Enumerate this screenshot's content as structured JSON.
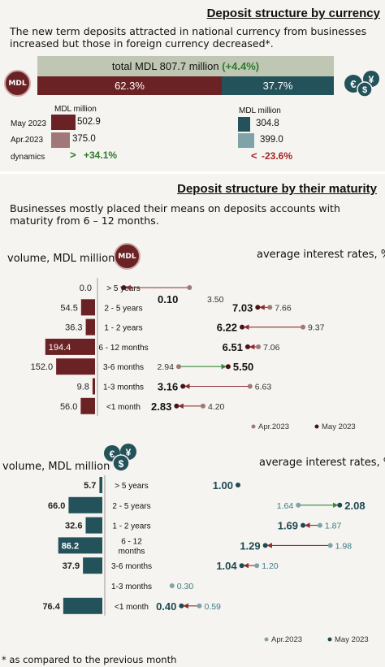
{
  "section1": {
    "title": "Deposit structure  by currency",
    "description": "The new term deposits attracted in national currency from businesses increased but those in foreign currency decreased*.",
    "total_label": "total MDL  807.7 million",
    "total_change": "(+4.4%)",
    "mdl_share": "62.3%",
    "fx_share": "37.7%",
    "mdl_badge": "MDL",
    "mdl_unit": "MDL million",
    "fx_unit": "MDL million",
    "row_labels": [
      "May 2023",
      "Apr.2023",
      "dynamics"
    ],
    "mdl_values": [
      "502.9",
      "375.0"
    ],
    "fx_values": [
      "304.8",
      "399.0"
    ],
    "mdl_dynamics_arrow": ">",
    "mdl_dynamics": "+34.1%",
    "fx_dynamics_arrow": "<",
    "fx_dynamics": "-23.6%"
  },
  "section2": {
    "title": "Deposit structure by their maturity",
    "description": "Businesses mostly placed their means on deposits accounts with maturity from 6 – 12 months.",
    "mdl_volume_label": "volume, MDL million",
    "mdl_rate_label": "average interest rates, %",
    "mdl_badge": "MDL",
    "fx_volume_label": "volume, MDL million",
    "fx_rate_label": "average interest rates, %",
    "footnote": "* as compared to the previous month"
  },
  "chart_data": [
    {
      "type": "bar",
      "title": "Deposit structure by currency",
      "categories": [
        "May 2023",
        "Apr.2023"
      ],
      "series": [
        {
          "name": "MDL",
          "values": [
            502.9,
            375.0
          ]
        },
        {
          "name": "foreign currency",
          "values": [
            304.8,
            399.0
          ]
        }
      ],
      "shares": {
        "MDL": 62.3,
        "foreign currency": 37.7
      },
      "total": 807.7,
      "total_change_pct": 4.4,
      "dynamics_pct": {
        "MDL": 34.1,
        "foreign currency": -23.6
      },
      "colors": {
        "MDL": "#6b2224",
        "foreign currency": "#24525a"
      }
    },
    {
      "type": "bar",
      "title": "",
      "ylabel": "volume, MDL million",
      "categories": [
        "> 5 years",
        "2 - 5 years",
        "1 - 2 years",
        "6 - 12 months",
        "3-6 months",
        "1-3 months",
        "<1 month"
      ],
      "values": [
        0.0,
        54.5,
        36.3,
        194.4,
        152.0,
        9.8,
        56.0
      ],
      "color": "#6b2224",
      "dumbbell": {
        "label": "average interest rates, %",
        "legend": [
          "Apr.2023",
          "May 2023"
        ],
        "apr": [
          3.5,
          7.66,
          9.37,
          7.06,
          2.94,
          6.63,
          4.2
        ],
        "may": [
          0.1,
          7.03,
          6.22,
          6.51,
          5.5,
          3.16,
          2.83
        ],
        "apr_text": [
          "3.50",
          "7.66",
          "9.37",
          "7.06",
          "2.94",
          "6.63",
          "4.20"
        ],
        "may_text": [
          "0.10",
          "7.03",
          "6.22",
          "6.51",
          "5.50",
          "3.16",
          "2.83"
        ],
        "colors": {
          "apr": "#a07878",
          "may": "#4a1416",
          "down": "#8b2e2e",
          "up": "#3a8a3a"
        }
      }
    },
    {
      "type": "bar",
      "title": "",
      "ylabel": "volume, MDL million",
      "categories": [
        "> 5 years",
        "2 - 5 years",
        "1 - 2 years",
        "6 - 12 months",
        "3-6 months",
        "1-3 months",
        "<1 month"
      ],
      "values": [
        5.7,
        66.0,
        32.6,
        86.2,
        37.9,
        null,
        76.4
      ],
      "value_text": [
        "5.7",
        "66.0",
        "32.6",
        "86.2",
        "37.9",
        "",
        "76.4"
      ],
      "color": "#24525a",
      "dumbbell": {
        "label": "average interest rates, %",
        "legend": [
          "Apr.2023",
          "May 2023"
        ],
        "apr": [
          null,
          1.64,
          1.87,
          1.98,
          1.2,
          0.3,
          0.59
        ],
        "may": [
          1.0,
          2.08,
          1.69,
          1.29,
          1.04,
          null,
          0.4
        ],
        "apr_text": [
          "",
          "1.64",
          "1.87",
          "1.98",
          "1.20",
          "0.30",
          "0.59"
        ],
        "may_text": [
          "1.00",
          "2.08",
          "1.69",
          "1.29",
          "1.04",
          "",
          "0.40"
        ],
        "colors": {
          "apr": "#7fa3a8",
          "may": "#1d4a52",
          "down": "#8b2e2e",
          "up": "#3a8a3a"
        }
      }
    }
  ]
}
